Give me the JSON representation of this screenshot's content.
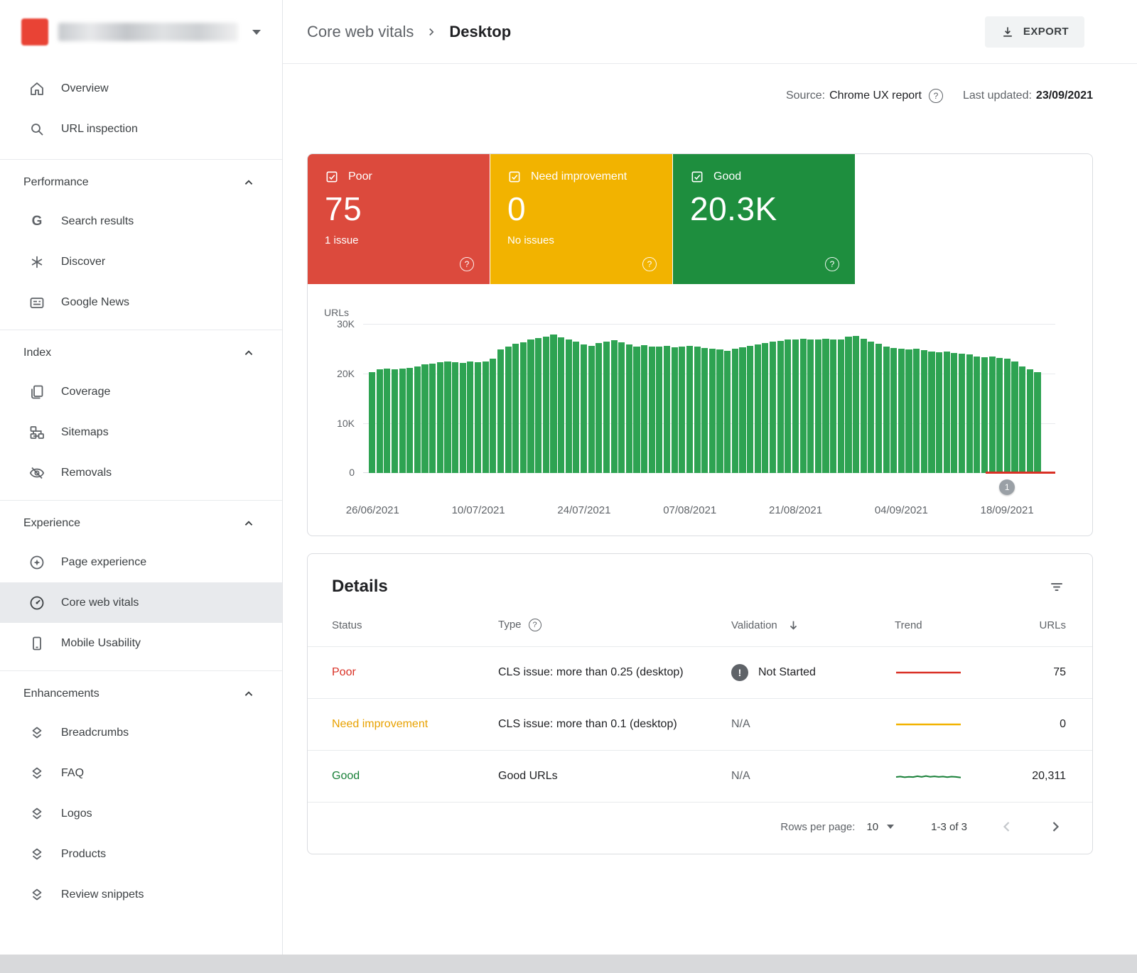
{
  "colors": {
    "poor": "#dc4a3d",
    "need_improvement": "#f2b300",
    "good": "#1e8e3e",
    "bar": "#2ea352",
    "trend_poor": "#d93025",
    "trend_need": "#f2b300",
    "trend_good": "#188038",
    "text_poor": "#d93025",
    "text_need": "#e8a100",
    "text_good": "#188038"
  },
  "sidebar": {
    "top_items": [
      {
        "label": "Overview"
      },
      {
        "label": "URL inspection"
      }
    ],
    "sections": [
      {
        "label": "Performance",
        "items": [
          {
            "label": "Search results"
          },
          {
            "label": "Discover"
          },
          {
            "label": "Google News"
          }
        ]
      },
      {
        "label": "Index",
        "items": [
          {
            "label": "Coverage"
          },
          {
            "label": "Sitemaps"
          },
          {
            "label": "Removals"
          }
        ]
      },
      {
        "label": "Experience",
        "items": [
          {
            "label": "Page experience"
          },
          {
            "label": "Core web vitals",
            "selected": true
          },
          {
            "label": "Mobile Usability"
          }
        ]
      },
      {
        "label": "Enhancements",
        "items": [
          {
            "label": "Breadcrumbs"
          },
          {
            "label": "FAQ"
          },
          {
            "label": "Logos"
          },
          {
            "label": "Products"
          },
          {
            "label": "Review snippets"
          }
        ]
      }
    ]
  },
  "header": {
    "breadcrumb_parent": "Core web vitals",
    "breadcrumb_current": "Desktop",
    "export_label": "EXPORT"
  },
  "meta": {
    "source_label": "Source:",
    "source_value": "Chrome UX report",
    "last_updated_label": "Last updated:",
    "last_updated_value": "23/09/2021"
  },
  "status_cards": [
    {
      "label": "Poor",
      "value": "75",
      "subtext": "1 issue"
    },
    {
      "label": "Need improvement",
      "value": "0",
      "subtext": "No issues"
    },
    {
      "label": "Good",
      "value": "20.3K",
      "subtext": ""
    }
  ],
  "chart_data": {
    "type": "bar",
    "title": "Good URLs over time (Core web vitals - Desktop)",
    "ylabel": "URLs",
    "xlabel": "",
    "grid": true,
    "legend": "none",
    "ylim": [
      0,
      30000
    ],
    "yticks": [
      "30K",
      "20K",
      "10K",
      "0"
    ],
    "xticks": [
      {
        "label": "26/06/2021",
        "index": 0
      },
      {
        "label": "10/07/2021",
        "index": 14
      },
      {
        "label": "24/07/2021",
        "index": 28
      },
      {
        "label": "07/08/2021",
        "index": 42
      },
      {
        "label": "21/08/2021",
        "index": 56
      },
      {
        "label": "04/09/2021",
        "index": 70
      },
      {
        "label": "18/09/2021",
        "index": 84
      }
    ],
    "series": [
      {
        "name": "Good URLs",
        "color": "#2ea352",
        "values": [
          20300,
          20800,
          21000,
          20900,
          21000,
          21200,
          21500,
          21800,
          22000,
          22300,
          22400,
          22300,
          22200,
          22400,
          22300,
          22500,
          23000,
          24800,
          25500,
          26000,
          26300,
          26800,
          27200,
          27500,
          27800,
          27300,
          26800,
          26500,
          25900,
          25600,
          26200,
          26500,
          26700,
          26300,
          25800,
          25500,
          25700,
          25400,
          25500,
          25600,
          25300,
          25500,
          25600,
          25400,
          25200,
          25000,
          24800,
          24600,
          25000,
          25300,
          25600,
          25900,
          26200,
          26400,
          26600,
          26800,
          26900,
          27000,
          26900,
          26800,
          27000,
          26900,
          26800,
          27500,
          27600,
          27000,
          26500,
          26000,
          25500,
          25200,
          25000,
          24800,
          25000,
          24700,
          24500,
          24300,
          24500,
          24200,
          24000,
          23800,
          23500,
          23300,
          23400,
          23200,
          23000,
          22500,
          21500,
          20800,
          20300
        ]
      }
    ],
    "annotations": [
      {
        "label": "1",
        "index": 84
      }
    ],
    "poor_overlay": {
      "from_index": 80,
      "to_index": 88,
      "color": "#d93025"
    }
  },
  "details": {
    "title": "Details",
    "columns": {
      "status": "Status",
      "type": "Type",
      "validation": "Validation",
      "trend": "Trend",
      "urls": "URLs"
    },
    "rows": [
      {
        "status": "Poor",
        "type": "CLS issue: more than 0.25 (desktop)",
        "validation": "Not Started",
        "urls": "75"
      },
      {
        "status": "Need improvement",
        "type": "CLS issue: more than 0.1 (desktop)",
        "validation": "N/A",
        "urls": "0"
      },
      {
        "status": "Good",
        "type": "Good URLs",
        "validation": "N/A",
        "urls": "20,311"
      }
    ],
    "pagination": {
      "rows_per_page_label": "Rows per page:",
      "rows_per_page_value": "10",
      "range_text": "1-3 of 3"
    }
  }
}
